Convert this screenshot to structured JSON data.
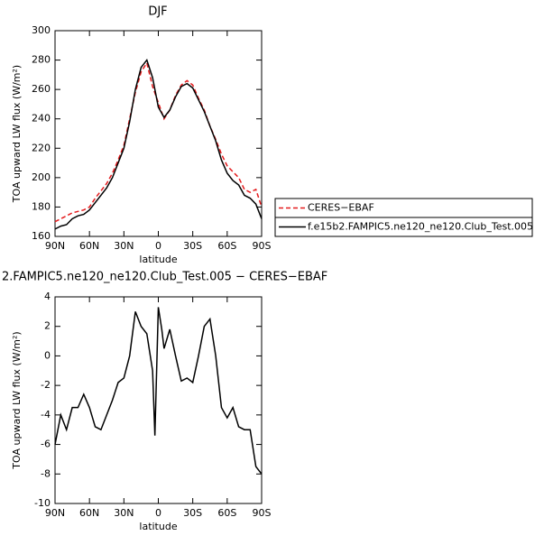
{
  "chart_data": [
    {
      "type": "line",
      "title": "DJF",
      "xlabel": "latitude",
      "ylabel": "TOA upward LW flux (W/m²)",
      "x": [
        90,
        85,
        80,
        75,
        70,
        65,
        60,
        55,
        50,
        45,
        40,
        35,
        30,
        25,
        20,
        15,
        10,
        5,
        0,
        -5,
        -10,
        -15,
        -20,
        -25,
        -30,
        -35,
        -40,
        -45,
        -50,
        -55,
        -60,
        -65,
        -70,
        -75,
        -80,
        -85,
        -90
      ],
      "series": [
        {
          "name": "CERES−EBAF",
          "color": "#e41a1c",
          "dash": true,
          "values": [
            170,
            172,
            174,
            176,
            177,
            178,
            180,
            186,
            191,
            196,
            203,
            212,
            222,
            240,
            258,
            272,
            278,
            262,
            251,
            240,
            246,
            256,
            263,
            266,
            263,
            254,
            246,
            235,
            226,
            216,
            208,
            204,
            200,
            192,
            190,
            192,
            180
          ]
        },
        {
          "name": "f.e15b2.FAMPIC5.ne120_ne120.Club_Test.005",
          "color": "#000000",
          "dash": false,
          "values": [
            165,
            167,
            168,
            172,
            174,
            175,
            178,
            183,
            188,
            193,
            200,
            210,
            220,
            238,
            260,
            275,
            280,
            268,
            248,
            241,
            246,
            255,
            262,
            264,
            261,
            253,
            245,
            235,
            225,
            212,
            203,
            198,
            195,
            188,
            186,
            182,
            172
          ]
        }
      ],
      "xlim": [
        90,
        -90
      ],
      "xticks": [
        {
          "value": 90,
          "label": "90N"
        },
        {
          "value": 60,
          "label": "60N"
        },
        {
          "value": 30,
          "label": "30N"
        },
        0,
        {
          "value": -30,
          "label": "30S"
        },
        {
          "value": -60,
          "label": "60S"
        },
        {
          "value": -90,
          "label": "90S"
        }
      ],
      "ylim": [
        160,
        300
      ],
      "yticks": [
        160,
        180,
        200,
        220,
        240,
        260,
        280,
        300
      ]
    },
    {
      "type": "line",
      "title": "2.FAMPIC5.ne120_ne120.Club_Test.005 − CERES−EBAF",
      "xlabel": "latitude",
      "ylabel": "TOA upward LW flux (W/m²)",
      "x": [
        90,
        85,
        80,
        75,
        70,
        65,
        60,
        55,
        50,
        45,
        40,
        35,
        30,
        25,
        20,
        15,
        10,
        5,
        3,
        0,
        -3,
        -5,
        -10,
        -15,
        -20,
        -25,
        -30,
        -35,
        -40,
        -45,
        -50,
        -55,
        -60,
        -65,
        -70,
        -75,
        -80,
        -85,
        -90
      ],
      "series": [
        {
          "color": "#000000",
          "dash": false,
          "values": [
            -6,
            -4,
            -5,
            -3.5,
            -3.5,
            -2.6,
            -3.5,
            -4.8,
            -5,
            -4,
            -3,
            -1.8,
            -1.5,
            0,
            3,
            2,
            1.5,
            -1,
            -5.4,
            3.3,
            1.8,
            0.5,
            1.8,
            0,
            -1.7,
            -1.5,
            -1.8,
            0,
            2,
            2.5,
            0,
            -3.5,
            -4.2,
            -3.5,
            -4.8,
            -5,
            -5,
            -7.5,
            -8
          ]
        }
      ],
      "xlim": [
        90,
        -90
      ],
      "xticks": [
        {
          "value": 90,
          "label": "90N"
        },
        {
          "value": 60,
          "label": "60N"
        },
        {
          "value": 30,
          "label": "30N"
        },
        0,
        {
          "value": -30,
          "label": "30S"
        },
        {
          "value": -60,
          "label": "60S"
        },
        {
          "value": -90,
          "label": "90S"
        }
      ],
      "ylim": [
        -10,
        4
      ],
      "yticks": [
        -10,
        -8,
        -6,
        -4,
        -2,
        0,
        2,
        4
      ]
    }
  ]
}
